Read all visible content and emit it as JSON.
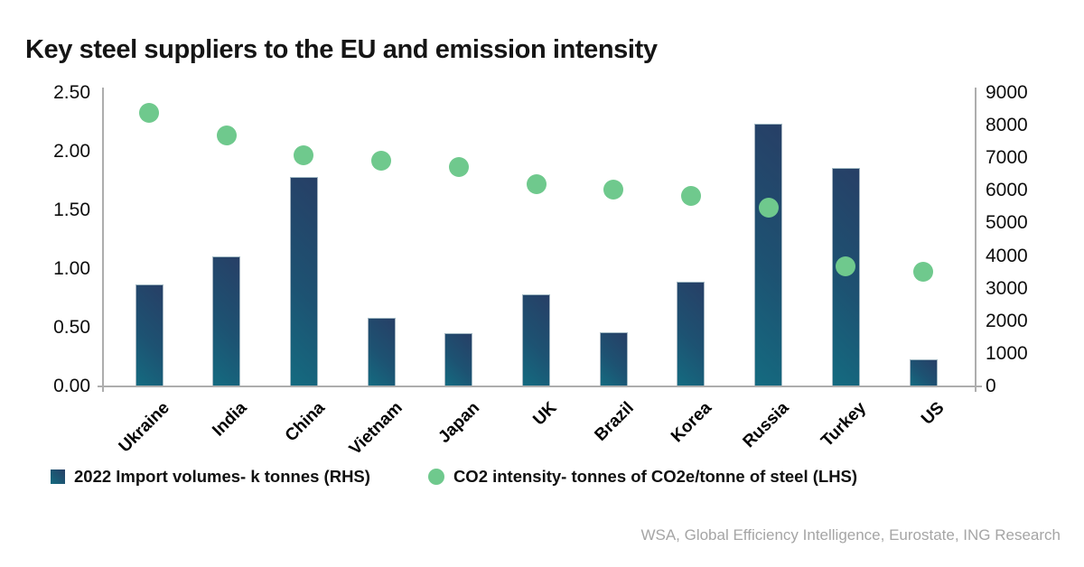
{
  "title": "Key steel suppliers to the EU and emission intensity",
  "source_note": "WSA, Global Efficiency Intelligence, Eurostate, ING Research",
  "legend": {
    "bars_label": "2022 Import volumes- k tonnes (RHS)",
    "dots_label": "CO2 intensity- tonnes of CO2e/tonne of steel (LHS)"
  },
  "colors": {
    "bar_gradient_dark": "#273f66",
    "bar_gradient_teal": "#146b80",
    "dot_green": "#6fc98d",
    "axis_line": "#adadad",
    "title_text": "#151515",
    "source_text": "#a5a5a5"
  },
  "chart_data": {
    "type": "bar",
    "subtype": "combo-bar-scatter-dual-axis",
    "title": "Key steel suppliers to the EU and emission intensity",
    "categories": [
      "Ukraine",
      "India",
      "China",
      "Vietnam",
      "Japan",
      "UK",
      "Brazil",
      "Korea",
      "Russia",
      "Turkey",
      "US"
    ],
    "series": [
      {
        "name": "2022 Import volumes- k tonnes (RHS)",
        "type": "bar",
        "axis": "right",
        "values": [
          3130,
          3990,
          6420,
          2100,
          1630,
          2830,
          1660,
          3210,
          8060,
          6700,
          830
        ]
      },
      {
        "name": "CO2 intensity- tonnes of CO2e/tonne of steel (LHS)",
        "type": "scatter",
        "axis": "left",
        "values": [
          2.33,
          2.14,
          1.97,
          1.92,
          1.87,
          1.72,
          1.68,
          1.62,
          1.52,
          1.02,
          0.98
        ]
      }
    ],
    "left_axis": {
      "min": 0,
      "max": 2.5,
      "ticks": [
        "2.50",
        "2.00",
        "1.50",
        "1.00",
        "0.50",
        "0.00"
      ]
    },
    "right_axis": {
      "min": 0,
      "max": 9000,
      "ticks": [
        "9000",
        "8000",
        "7000",
        "6000",
        "5000",
        "4000",
        "3000",
        "2000",
        "1000",
        "0"
      ]
    },
    "grid": false,
    "legend_position": "bottom",
    "xlabel": "",
    "ylabel_left": "tonnes of CO2e/tonne of steel",
    "ylabel_right": "k tonnes"
  }
}
